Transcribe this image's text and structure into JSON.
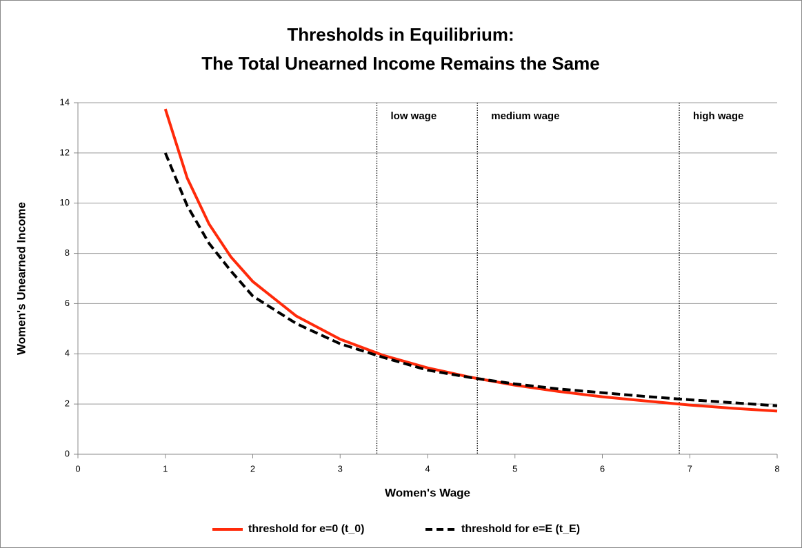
{
  "chart_data": {
    "type": "line",
    "title": [
      "Thresholds in Equilibrium:",
      "The Total Unearned Income Remains the Same"
    ],
    "x_label": "Women's Wage",
    "y_label": "Women's Unearned Income",
    "x": [
      1,
      1.25,
      1.5,
      1.75,
      2,
      2.5,
      3,
      3.5,
      4,
      4.5,
      5,
      5.5,
      6,
      6.5,
      7,
      7.5,
      8
    ],
    "series": [
      {
        "name": "threshold for e=0 (t_0)",
        "color": "#ff2a0a",
        "dash": "solid",
        "values": [
          13.75,
          11,
          9.17,
          7.86,
          6.88,
          5.5,
          4.58,
          3.93,
          3.44,
          3.06,
          2.75,
          2.5,
          2.29,
          2.12,
          1.96,
          1.83,
          1.72
        ]
      },
      {
        "name": "threshold for e=E (t_E)",
        "color": "#000000",
        "dash": "dashed",
        "values": [
          12,
          9.9,
          8.4,
          7.3,
          6.3,
          5.2,
          4.4,
          3.85,
          3.35,
          3.05,
          2.8,
          2.6,
          2.45,
          2.3,
          2.17,
          2.05,
          1.93
        ]
      }
    ],
    "regions": [
      {
        "x": 3.42,
        "label": "low wage"
      },
      {
        "x": 4.57,
        "label": "medium wage"
      },
      {
        "x": 6.88,
        "label": "high wage"
      }
    ],
    "xlim": [
      0,
      8
    ],
    "xticks": [
      0,
      1,
      2,
      3,
      4,
      5,
      6,
      7,
      8
    ],
    "ylim": [
      0,
      14
    ],
    "yticks": [
      0,
      2,
      4,
      6,
      8,
      10,
      12,
      14
    ],
    "grid": true,
    "legend": "bottom"
  }
}
